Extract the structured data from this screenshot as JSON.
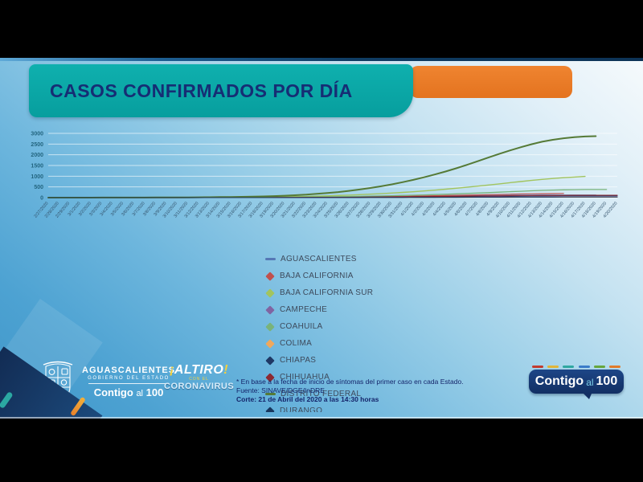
{
  "header": {
    "title": "CASOS CONFIRMADOS POR DÍA"
  },
  "chart_data": {
    "type": "line",
    "title": "CASOS CONFIRMADOS POR DÍA",
    "xlabel": "",
    "ylabel": "",
    "ylim": [
      0,
      3000
    ],
    "yticks": [
      0,
      500,
      1000,
      1500,
      2000,
      2500,
      3000
    ],
    "grid": true,
    "legend_position": "below-center",
    "x": [
      "2/27/2020",
      "2/28/2020",
      "2/29/2020",
      "3/1/2020",
      "3/2/2020",
      "3/3/2020",
      "3/4/2020",
      "3/5/2020",
      "3/6/2020",
      "3/7/2020",
      "3/8/2020",
      "3/9/2020",
      "3/10/2020",
      "3/11/2020",
      "3/12/2020",
      "3/13/2020",
      "3/14/2020",
      "3/15/2020",
      "3/16/2020",
      "3/17/2020",
      "3/18/2020",
      "3/19/2020",
      "3/20/2020",
      "3/21/2020",
      "3/22/2020",
      "3/23/2020",
      "3/24/2020",
      "3/25/2020",
      "3/26/2020",
      "3/27/2020",
      "3/28/2020",
      "3/29/2020",
      "3/30/2020",
      "3/31/2020",
      "4/1/2020",
      "4/2/2020",
      "4/3/2020",
      "4/4/2020",
      "4/5/2020",
      "4/6/2020",
      "4/7/2020",
      "4/8/2020",
      "4/9/2020",
      "4/10/2020",
      "4/11/2020",
      "4/12/2020",
      "4/13/2020",
      "4/14/2020",
      "4/15/2020",
      "4/16/2020",
      "4/17/2020",
      "4/18/2020",
      "4/19/2020",
      "4/20/2020"
    ],
    "series": [
      {
        "name": "AGUASCALIENTES",
        "color": "#5577b5",
        "marker": "dash",
        "stroke_width": 1.2,
        "values": [
          0,
          0,
          0,
          0,
          0,
          0,
          0,
          0,
          0,
          0,
          0,
          0,
          1,
          1,
          2,
          2,
          3,
          4,
          5,
          6,
          7,
          9,
          11,
          13,
          15,
          18,
          21,
          24,
          28,
          32,
          36,
          41,
          46,
          51,
          56,
          62,
          68,
          74,
          80,
          86,
          92,
          97,
          102,
          106,
          110,
          113,
          116,
          118,
          119,
          120,
          120,
          120,
          null,
          null
        ]
      },
      {
        "name": "BAJA CALIFORNIA",
        "color": "#c0504d",
        "marker": "diamond",
        "stroke_width": 1.2,
        "values": [
          0,
          0,
          0,
          0,
          0,
          0,
          0,
          0,
          0,
          0,
          1,
          1,
          1,
          2,
          2,
          3,
          3,
          4,
          5,
          6,
          8,
          10,
          12,
          14,
          17,
          20,
          24,
          28,
          33,
          38,
          44,
          50,
          57,
          64,
          72,
          80,
          89,
          98,
          108,
          118,
          128,
          138,
          148,
          158,
          167,
          175,
          182,
          188,
          195,
          null,
          null,
          null,
          null,
          null
        ]
      },
      {
        "name": "BAJA CALIFORNIA SUR",
        "color": "#a2c45e",
        "marker": "diamond",
        "stroke_width": 1.4,
        "values": [
          0,
          0,
          0,
          0,
          0,
          0,
          1,
          1,
          2,
          2,
          3,
          4,
          5,
          6,
          8,
          10,
          12,
          15,
          18,
          22,
          27,
          33,
          40,
          48,
          58,
          70,
          84,
          100,
          118,
          138,
          160,
          185,
          212,
          242,
          275,
          310,
          350,
          392,
          437,
          485,
          535,
          588,
          642,
          696,
          750,
          802,
          850,
          893,
          930,
          960,
          990,
          null,
          null,
          null
        ]
      },
      {
        "name": "CAMPECHE",
        "color": "#8064a2",
        "marker": "diamond",
        "stroke_width": 1.1,
        "values": [
          0,
          0,
          0,
          0,
          0,
          0,
          0,
          0,
          0,
          0,
          0,
          0,
          0,
          0,
          0,
          0,
          0,
          0,
          0,
          0,
          1,
          2,
          3,
          4,
          5,
          6,
          7,
          8,
          10,
          12,
          14,
          16,
          18,
          20,
          22,
          24,
          26,
          28,
          30,
          32,
          34,
          36,
          38,
          40,
          41,
          42,
          43,
          44,
          45,
          45,
          45,
          45,
          45,
          45
        ]
      },
      {
        "name": "COAHUILA",
        "color": "#79b37a",
        "marker": "diamond",
        "stroke_width": 1.3,
        "values": [
          0,
          0,
          0,
          0,
          0,
          0,
          0,
          0,
          1,
          1,
          1,
          2,
          2,
          3,
          4,
          5,
          6,
          7,
          9,
          11,
          13,
          16,
          19,
          23,
          27,
          32,
          38,
          44,
          51,
          59,
          68,
          78,
          89,
          101,
          114,
          128,
          143,
          159,
          176,
          194,
          213,
          233,
          254,
          276,
          298,
          318,
          336,
          352,
          364,
          372,
          378,
          380,
          380,
          null
        ]
      },
      {
        "name": "COLIMA",
        "color": "#f0a85c",
        "marker": "diamond",
        "stroke_width": 1.1,
        "values": [
          0,
          0,
          0,
          0,
          0,
          0,
          0,
          0,
          0,
          0,
          0,
          0,
          0,
          0,
          0,
          0,
          0,
          0,
          0,
          0,
          0,
          0,
          0,
          0,
          1,
          1,
          2,
          2,
          3,
          3,
          4,
          5,
          6,
          7,
          8,
          9,
          10,
          11,
          12,
          13,
          14,
          15,
          16,
          16,
          17,
          17,
          18,
          18,
          18,
          18,
          18,
          18,
          18,
          18
        ]
      },
      {
        "name": "CHIAPAS",
        "color": "#1f3864",
        "marker": "diamond",
        "stroke_width": 1.1,
        "values": [
          0,
          0,
          0,
          0,
          0,
          0,
          0,
          0,
          0,
          0,
          0,
          0,
          0,
          0,
          0,
          0,
          1,
          1,
          2,
          3,
          4,
          5,
          6,
          7,
          8,
          10,
          12,
          14,
          16,
          19,
          22,
          25,
          29,
          33,
          37,
          41,
          45,
          50,
          55,
          60,
          65,
          70,
          74,
          78,
          82,
          85,
          88,
          90,
          92,
          93,
          94,
          95,
          95,
          95
        ]
      },
      {
        "name": "CHIHUAHUA",
        "color": "#8c2a32",
        "marker": "diamond",
        "stroke_width": 1.1,
        "values": [
          0,
          0,
          0,
          0,
          0,
          0,
          0,
          0,
          0,
          0,
          0,
          0,
          0,
          0,
          1,
          1,
          2,
          2,
          3,
          4,
          5,
          6,
          7,
          8,
          10,
          12,
          14,
          17,
          20,
          23,
          27,
          31,
          35,
          39,
          44,
          49,
          54,
          59,
          64,
          69,
          74,
          79,
          84,
          89,
          93,
          97,
          100,
          103,
          105,
          107,
          108,
          109,
          110,
          110
        ]
      },
      {
        "name": "DISTRITO FEDERAL",
        "color": "#557a36",
        "marker": "dash",
        "stroke_width": 2,
        "values": [
          0,
          0,
          0,
          1,
          1,
          2,
          2,
          3,
          4,
          5,
          6,
          8,
          10,
          13,
          16,
          20,
          25,
          31,
          38,
          47,
          58,
          72,
          90,
          112,
          140,
          175,
          215,
          260,
          315,
          380,
          450,
          530,
          620,
          720,
          830,
          950,
          1080,
          1220,
          1370,
          1530,
          1700,
          1870,
          2040,
          2200,
          2350,
          2490,
          2610,
          2700,
          2770,
          2820,
          2855,
          2870,
          null,
          null
        ]
      },
      {
        "name": "DURANGO",
        "color": "#17375e",
        "marker": "diamond",
        "stroke_width": 1.1,
        "values": [
          0,
          0,
          0,
          0,
          0,
          0,
          0,
          0,
          0,
          0,
          0,
          0,
          0,
          0,
          0,
          0,
          0,
          0,
          0,
          0,
          0,
          0,
          1,
          1,
          2,
          2,
          3,
          3,
          4,
          5,
          6,
          7,
          8,
          9,
          10,
          11,
          12,
          14,
          16,
          18,
          20,
          22,
          24,
          25,
          26,
          27,
          28,
          28,
          29,
          29,
          30,
          30,
          30,
          30
        ]
      }
    ]
  },
  "footer": {
    "gov_logo": {
      "line1": "AGUASCALIENTES",
      "line2": "GOBIERNO DEL ESTADO",
      "line3a": "Contigo",
      "line3b": "al",
      "line3c": "100"
    },
    "altiro": {
      "open": "¡",
      "word": "ALTIRO",
      "close": "!",
      "middle": "CON EL",
      "bottom": "CORONAVIRUS"
    },
    "footnote": {
      "line1": "* En base a la fecha de inicio de síntomas del primer caso en cada Estado.",
      "line2": "Fuente: SINAVE/DGE/InDRE",
      "line3": "Corte: 21 de Abril del 2020 a las 14:30 horas"
    },
    "badge": {
      "word1": "Contigo",
      "word2": "al",
      "word3": "100"
    }
  },
  "colors": {
    "title_band": "#0aa6a6",
    "title_text": "#162d74",
    "orange_tab": "#e8761f",
    "axis_label": "#23657f",
    "date_label": "#33526b",
    "badge_dashes": [
      "#c23b2e",
      "#e0b53a",
      "#2fa7a0",
      "#3a7bc8",
      "#66a63c",
      "#e07b2a"
    ]
  }
}
